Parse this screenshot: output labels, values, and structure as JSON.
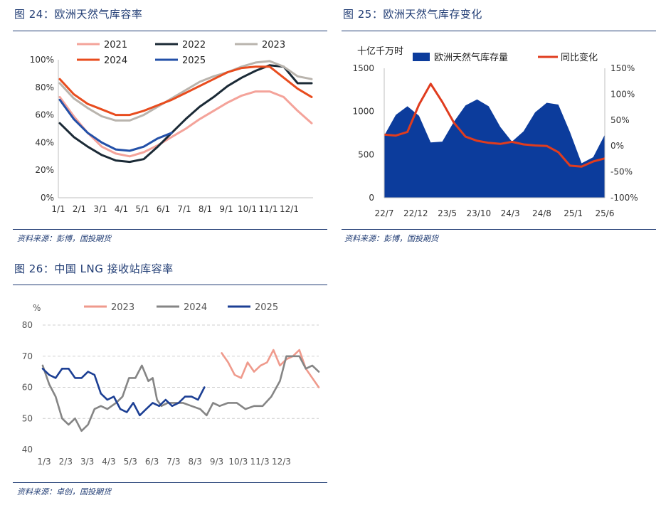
{
  "colors": {
    "navy": "#1f3b73",
    "c2021": "#f4a39a",
    "c2022": "#1b2a36",
    "c2023": "#b9b4ad",
    "c2024": "#e84c1e",
    "c2025": "#2350a8",
    "storage_fill": "#0c3c9c",
    "yoy_line": "#e03c1e",
    "lng2023": "#ef9a8c",
    "lng2024": "#858585",
    "lng2025": "#1c3f94"
  },
  "panels": [
    {
      "title": "图 24：欧洲天然气库容率",
      "source": "资料来源：彭博，国投期货"
    },
    {
      "title": "图 25：欧洲天然气库存变化",
      "source": "资料来源：彭博，国投期货"
    },
    {
      "title": "图 26：中国 LNG 接收站库容率",
      "source": "资料来源：卓创，国投期货"
    }
  ],
  "chart_data": [
    {
      "type": "line",
      "x_labels": [
        "1/1",
        "2/1",
        "3/1",
        "4/1",
        "5/1",
        "6/1",
        "7/1",
        "8/1",
        "9/1",
        "10/1",
        "11/1",
        "12/1"
      ],
      "y_ticks": [
        "0%",
        "20%",
        "40%",
        "60%",
        "80%",
        "100%"
      ],
      "ylim": [
        0,
        100
      ],
      "legend_position": "top",
      "series": [
        {
          "name": "2021",
          "color_key": "c2021",
          "values": [
            73,
            59,
            47,
            37,
            32,
            30,
            33,
            38,
            44,
            50,
            57,
            63,
            69,
            74,
            77,
            77,
            73,
            63,
            54
          ]
        },
        {
          "name": "2022",
          "color_key": "c2022",
          "values": [
            54,
            44,
            37,
            31,
            27,
            26,
            28,
            37,
            47,
            57,
            66,
            73,
            81,
            87,
            92,
            96,
            95,
            83,
            83
          ]
        },
        {
          "name": "2023",
          "color_key": "c2023",
          "values": [
            83,
            72,
            65,
            59,
            56,
            56,
            60,
            66,
            72,
            78,
            84,
            88,
            91,
            95,
            98,
            99,
            95,
            88,
            86
          ]
        },
        {
          "name": "2024",
          "color_key": "c2024",
          "values": [
            86,
            75,
            68,
            64,
            60,
            60,
            63,
            67,
            71,
            76,
            81,
            86,
            91,
            94,
            95,
            95,
            87,
            79,
            73
          ]
        },
        {
          "name": "2025",
          "color_key": "c2025",
          "values": [
            71,
            57,
            47,
            40,
            35,
            34,
            37,
            43,
            47
          ]
        }
      ]
    },
    {
      "type": "area+line",
      "x_labels": [
        "22/7",
        "22/12",
        "23/5",
        "23/10",
        "24/3",
        "24/8",
        "25/1",
        "25/6"
      ],
      "y_left_label": "十亿千万时",
      "y_left_ticks": [
        "0",
        "500",
        "1000",
        "1500"
      ],
      "ylim_left": [
        0,
        1500
      ],
      "y_right_ticks": [
        "-100%",
        "-50%",
        "0%",
        "50%",
        "100%",
        "150%"
      ],
      "ylim_right": [
        -100,
        150
      ],
      "legend_position": "top",
      "series": [
        {
          "name": "欧洲天然气库存量",
          "kind": "area",
          "axis": "left",
          "color_key": "storage_fill",
          "values": [
            720,
            960,
            1060,
            950,
            640,
            650,
            880,
            1070,
            1140,
            1060,
            820,
            650,
            770,
            990,
            1100,
            1080,
            760,
            400,
            470,
            730
          ]
        },
        {
          "name": "同比变化",
          "kind": "line",
          "axis": "right",
          "color_key": "yoy_line",
          "values": [
            22,
            20,
            27,
            80,
            120,
            85,
            45,
            18,
            10,
            6,
            4,
            8,
            3,
            1,
            0,
            -12,
            -38,
            -40,
            -30,
            -24
          ]
        }
      ]
    },
    {
      "type": "line",
      "x_labels": [
        "1/3",
        "2/3",
        "3/3",
        "4/3",
        "5/3",
        "6/3",
        "7/3",
        "8/3",
        "9/3",
        "10/3",
        "11/3",
        "12/3"
      ],
      "y_label": "%",
      "y_ticks": [
        "40",
        "50",
        "60",
        "70",
        "80"
      ],
      "ylim": [
        40,
        80
      ],
      "grid": "horizontal-dashed",
      "legend_position": "top",
      "series": [
        {
          "name": "2023",
          "color_key": "lng2023",
          "x": [
            8.3,
            8.6,
            8.9,
            9.2,
            9.5,
            9.8,
            10.1,
            10.4,
            10.7,
            11.0,
            11.3,
            11.6,
            11.9,
            12.2,
            12.5,
            12.8
          ],
          "values": [
            71,
            68,
            64,
            63,
            68,
            65,
            67,
            68,
            72,
            67,
            69,
            70,
            72,
            66,
            63,
            60
          ]
        },
        {
          "name": "2024",
          "color_key": "lng2024",
          "x": [
            0,
            0.3,
            0.6,
            0.9,
            1.2,
            1.5,
            1.8,
            2.1,
            2.4,
            2.7,
            3.0,
            3.4,
            3.7,
            4.0,
            4.3,
            4.6,
            4.9,
            5.1,
            5.3,
            5.5,
            5.8,
            6.1,
            6.5,
            6.9,
            7.3,
            7.6,
            7.9,
            8.2,
            8.6,
            9.0,
            9.4,
            9.8,
            10.2,
            10.6,
            11.0,
            11.3,
            11.6,
            11.9,
            12.2,
            12.5,
            12.8
          ],
          "values": [
            67,
            61,
            57,
            50,
            48,
            50,
            46,
            48,
            53,
            54,
            53,
            55,
            57,
            63,
            63,
            67,
            62,
            63,
            56,
            54,
            55,
            55,
            55,
            54,
            53,
            51,
            55,
            54,
            55,
            55,
            53,
            54,
            54,
            57,
            62,
            70,
            70,
            70,
            66,
            67,
            65
          ]
        },
        {
          "name": "2025",
          "color_key": "lng2025",
          "x": [
            0,
            0.3,
            0.6,
            0.9,
            1.2,
            1.5,
            1.8,
            2.1,
            2.4,
            2.7,
            3.0,
            3.3,
            3.6,
            3.9,
            4.2,
            4.5,
            4.8,
            5.1,
            5.4,
            5.7,
            6.0,
            6.3,
            6.6,
            6.9,
            7.2,
            7.5
          ],
          "values": [
            66,
            64,
            63,
            66,
            66,
            63,
            63,
            65,
            64,
            58,
            56,
            57,
            53,
            52,
            55,
            51,
            53,
            55,
            54,
            56,
            54,
            55,
            57,
            57,
            56,
            60
          ]
        }
      ]
    }
  ]
}
